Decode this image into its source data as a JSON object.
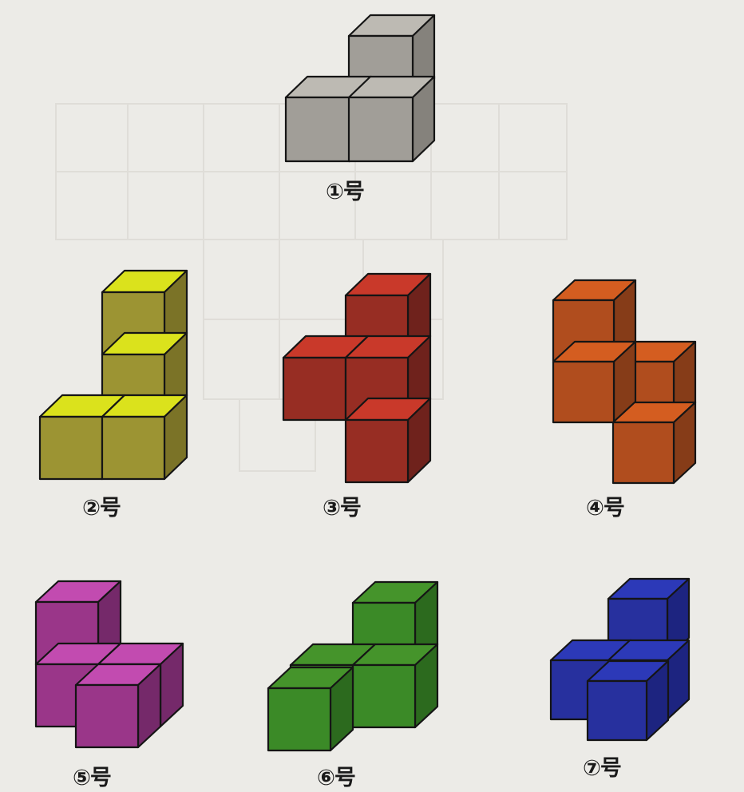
{
  "pieces": [
    {
      "id": 1,
      "label": "①号",
      "colors": {
        "top": "#bdbab3",
        "front": "#a19e98",
        "side": "#85827c"
      }
    },
    {
      "id": 2,
      "label": "②号",
      "colors": {
        "top": "#dbe21c",
        "front": "#9c9433",
        "side": "#7b7327"
      }
    },
    {
      "id": 3,
      "label": "③号",
      "colors": {
        "top": "#c9392a",
        "front": "#972d23",
        "side": "#6f221c"
      }
    },
    {
      "id": 4,
      "label": "④号",
      "colors": {
        "top": "#d45d20",
        "front": "#b04d1e",
        "side": "#863c18"
      }
    },
    {
      "id": 5,
      "label": "⑤号",
      "colors": {
        "top": "#c24bb0",
        "front": "#9a3689",
        "side": "#75296a"
      }
    },
    {
      "id": 6,
      "label": "⑥号",
      "colors": {
        "top": "#45942b",
        "front": "#3b8a27",
        "side": "#2c6a1e"
      }
    },
    {
      "id": 7,
      "label": "⑦号",
      "colors": {
        "top": "#2c39b8",
        "front": "#27309e",
        "side": "#1d2480"
      }
    }
  ]
}
